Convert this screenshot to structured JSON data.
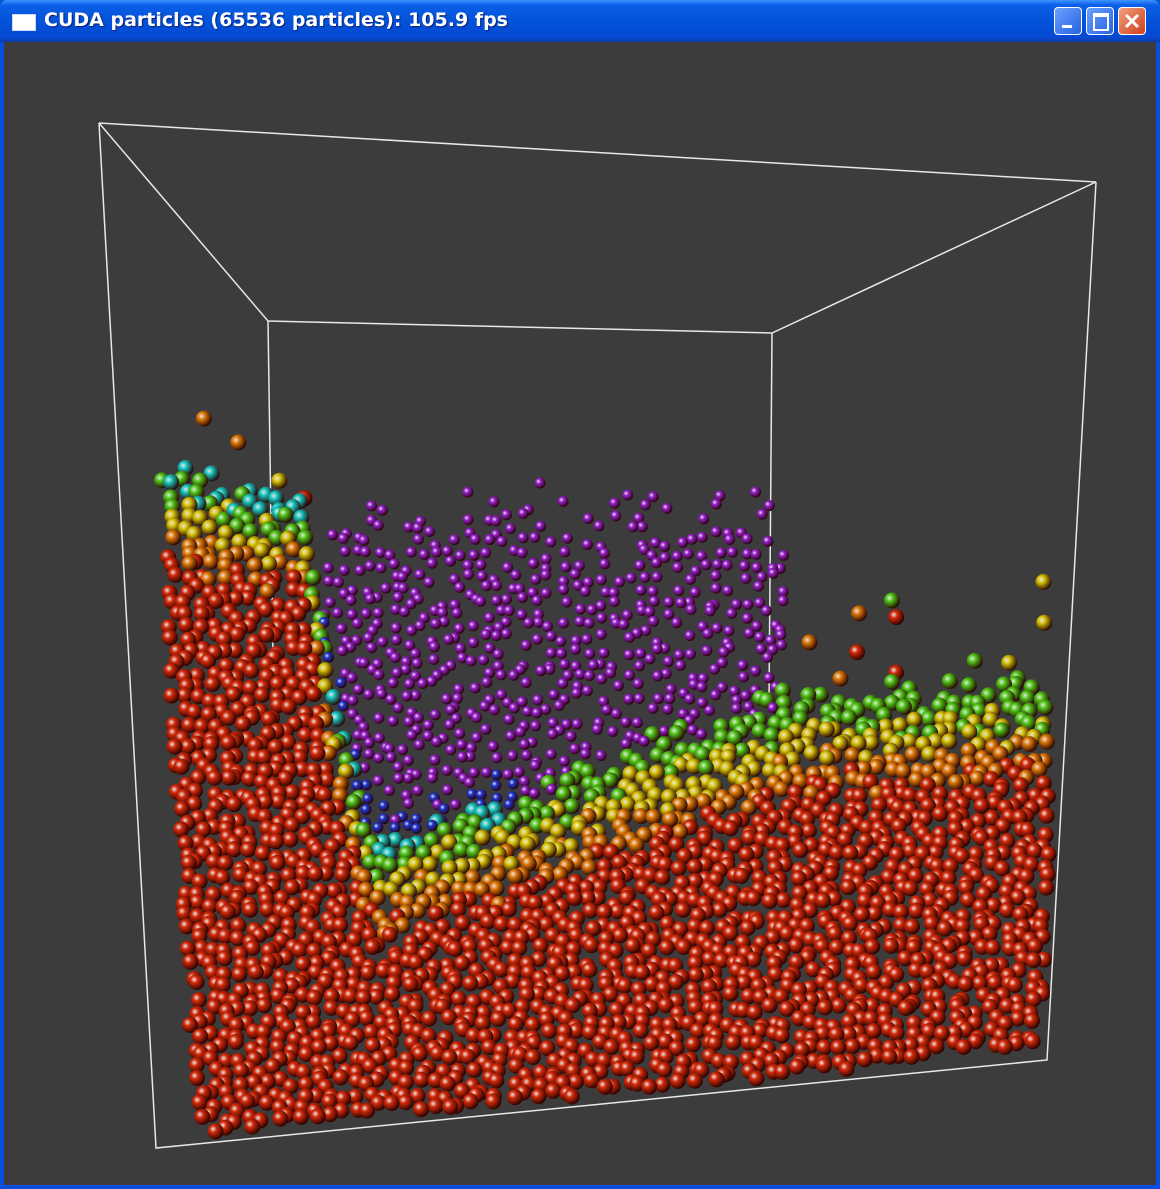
{
  "window": {
    "title": "CUDA particles (65536 particles): 105.9 fps"
  }
}
